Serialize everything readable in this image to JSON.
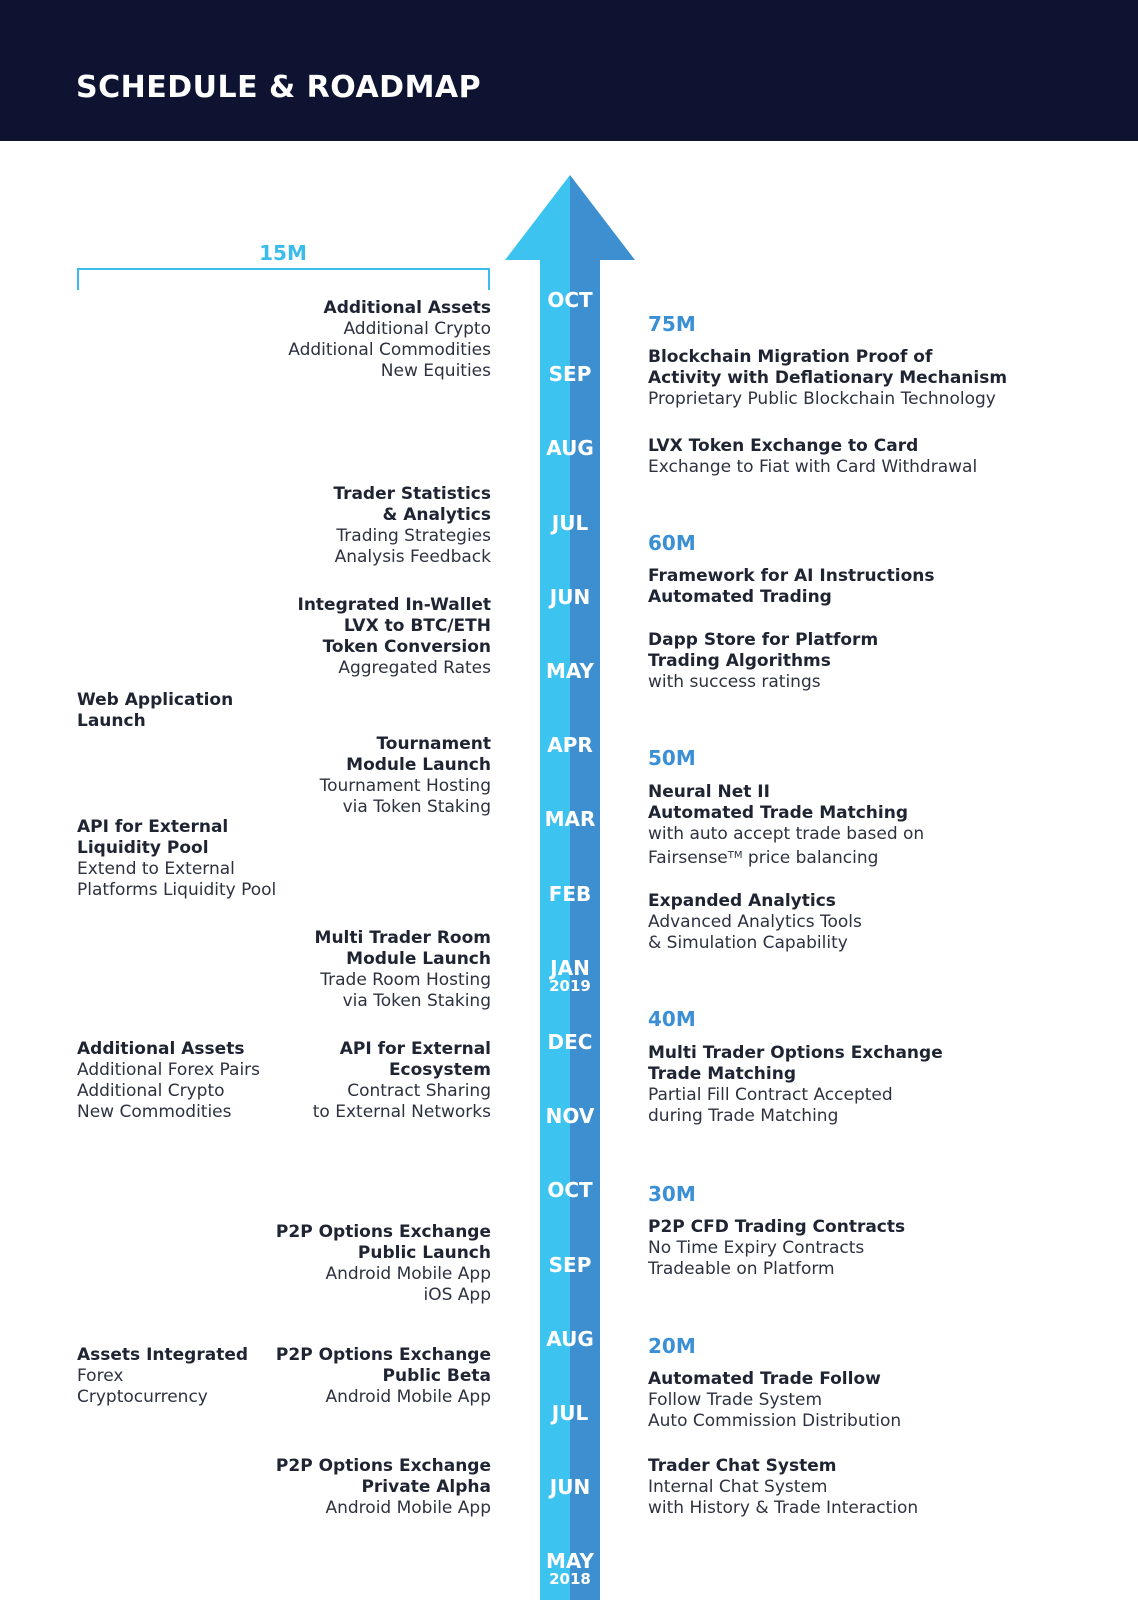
{
  "header": {
    "title": "SCHEDULE & ROADMAP"
  },
  "colors": {
    "header_bg": "#0d1330",
    "arrow_light": "#3cc3f0",
    "arrow_dark": "#3d8fd0",
    "milestone": "#3b8fd4",
    "bracket": "#3cbcec"
  },
  "months": [
    {
      "label": "OCT",
      "year": ""
    },
    {
      "label": "SEP",
      "year": ""
    },
    {
      "label": "AUG",
      "year": ""
    },
    {
      "label": "JUL",
      "year": ""
    },
    {
      "label": "JUN",
      "year": ""
    },
    {
      "label": "MAY",
      "year": ""
    },
    {
      "label": "APR",
      "year": ""
    },
    {
      "label": "MAR",
      "year": ""
    },
    {
      "label": "FEB",
      "year": ""
    },
    {
      "label": "JAN",
      "year": "2019"
    },
    {
      "label": "DEC",
      "year": ""
    },
    {
      "label": "NOV",
      "year": ""
    },
    {
      "label": "OCT",
      "year": ""
    },
    {
      "label": "SEP",
      "year": ""
    },
    {
      "label": "AUG",
      "year": ""
    },
    {
      "label": "JUL",
      "year": ""
    },
    {
      "label": "JUN",
      "year": ""
    },
    {
      "label": "MAY",
      "year": "2018"
    }
  ],
  "bracket": {
    "label": "15M"
  },
  "left": {
    "additional_assets": {
      "title": "Additional Assets",
      "lines": [
        "Additional Crypto",
        "Additional Commodities",
        "New Equities"
      ]
    },
    "trader_statistics": {
      "title_1": "Trader Statistics",
      "title_2": "& Analytics",
      "lines": [
        "Trading Strategies",
        "Analysis Feedback"
      ]
    },
    "integrated_wallet": {
      "title_1": "Integrated In-Wallet",
      "title_2": "LVX to BTC/ETH",
      "title_3": "Token Conversion",
      "lines": [
        "Aggregated Rates"
      ]
    },
    "web_app": {
      "title_1": "Web Application",
      "title_2": "Launch"
    },
    "tournament": {
      "title_1": "Tournament",
      "title_2": "Module Launch",
      "lines": [
        "Tournament Hosting",
        "via Token Staking"
      ]
    },
    "api_liquidity": {
      "title_1": "API for External",
      "title_2": "Liquidity Pool",
      "lines": [
        "Extend to External",
        "Platforms Liquidity Pool"
      ]
    },
    "multi_trader_room": {
      "title_1": "Multi Trader Room",
      "title_2": "Module Launch",
      "lines": [
        "Trade Room Hosting",
        "via Token Staking"
      ]
    },
    "additional_assets_2": {
      "title": "Additional Assets",
      "lines": [
        "Additional Forex Pairs",
        "Additional Crypto",
        "New Commodities"
      ]
    },
    "api_ecosystem": {
      "title_1": "API for External",
      "title_2": "Ecosystem",
      "lines": [
        "Contract Sharing",
        "to External Networks"
      ]
    },
    "p2p_public_launch": {
      "title_1": "P2P Options Exchange",
      "title_2": "Public Launch",
      "lines": [
        "Android Mobile App",
        "iOS App"
      ]
    },
    "assets_integrated": {
      "title": "Assets Integrated",
      "lines": [
        "Forex",
        "Cryptocurrency"
      ]
    },
    "p2p_public_beta": {
      "title_1": "P2P Options Exchange",
      "title_2": "Public Beta",
      "lines": [
        "Android Mobile App"
      ]
    },
    "p2p_private_alpha": {
      "title_1": "P2P Options Exchange",
      "title_2": "Private Alpha",
      "lines": [
        "Android Mobile App"
      ]
    }
  },
  "right": {
    "m75": "75M",
    "blockchain": {
      "title_1": "Blockchain Migration Proof of",
      "title_2": "Activity with Deflationary Mechanism",
      "lines": [
        "Proprietary Public Blockchain Technology"
      ]
    },
    "lvx_card": {
      "title": "LVX Token Exchange to Card",
      "lines": [
        "Exchange to Fiat with Card Withdrawal"
      ]
    },
    "m60": "60M",
    "ai_framework": {
      "title_1": "Framework for AI Instructions",
      "title_2": "Automated Trading"
    },
    "dapp_store": {
      "title_1": "Dapp Store for Platform",
      "title_2": "Trading Algorithms",
      "lines": [
        "with success ratings"
      ]
    },
    "m50": "50M",
    "neural_net": {
      "title_1": "Neural Net II",
      "title_2": "Automated Trade Matching",
      "line_1": "with auto accept trade based on",
      "line_2a": "Fairsense",
      "line_2tm": "TM",
      "line_2b": " price balancing"
    },
    "expanded_analytics": {
      "title": "Expanded Analytics",
      "lines": [
        "Advanced Analytics Tools",
        "& Simulation Capability"
      ]
    },
    "m40": "40M",
    "multi_trader_options": {
      "title_1": "Multi Trader Options Exchange",
      "title_2": "Trade Matching",
      "lines": [
        "Partial Fill Contract Accepted",
        "during Trade Matching"
      ]
    },
    "m30": "30M",
    "p2p_cfd": {
      "title": "P2P CFD Trading Contracts",
      "lines": [
        "No Time Expiry Contracts",
        "Tradeable on Platform"
      ]
    },
    "m20": "20M",
    "auto_follow": {
      "title": "Automated Trade Follow",
      "lines": [
        "Follow Trade System",
        "Auto Commission Distribution"
      ]
    },
    "chat": {
      "title": "Trader Chat System",
      "lines": [
        "Internal Chat System",
        "with History & Trade Interaction"
      ]
    }
  }
}
